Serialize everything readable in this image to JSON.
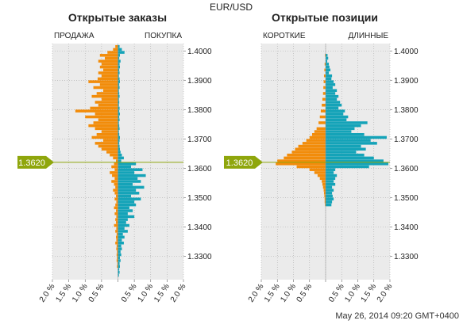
{
  "header": {
    "instrument": "EUR/USD"
  },
  "footer": {
    "timestamp": "May 26, 2014 09:20 GMT+0400"
  },
  "price_marker": {
    "label": "1.3620",
    "value": 1.362,
    "color": "#8fa60c"
  },
  "colors": {
    "sell": "#f28c0a",
    "buy": "#14a3b8",
    "panel": "#ebebeb",
    "grid": "#aaaaaa"
  },
  "chart_data": [
    {
      "type": "bar",
      "orientation": "horizontal",
      "title": "Открытые заказы",
      "left_label": "ПРОДАЖА",
      "right_label": "ПОКУПКА",
      "y_ticks": [
        "1.4000",
        "1.3900",
        "1.3800",
        "1.3700",
        "1.3600",
        "1.3500",
        "1.3400",
        "1.3300"
      ],
      "x_ticks": [
        "2.0 %",
        "1.5 %",
        "1.0 %",
        "0.5 %",
        "",
        "0.5 %",
        "1.0 %",
        "1.5 %",
        "2.0 %"
      ],
      "xlim": [
        -2,
        2
      ],
      "ylim": [
        1.322,
        1.4025
      ],
      "series": [
        {
          "name": "ПРОДАЖА",
          "levels": [
            [
              1.4015,
              0.08
            ],
            [
              1.4005,
              0.15
            ],
            [
              1.3995,
              0.32
            ],
            [
              1.3985,
              0.55
            ],
            [
              1.3975,
              0.4
            ],
            [
              1.3965,
              0.6
            ],
            [
              1.3955,
              0.5
            ],
            [
              1.3945,
              0.55
            ],
            [
              1.3935,
              0.45
            ],
            [
              1.3925,
              0.6
            ],
            [
              1.3915,
              0.5
            ],
            [
              1.3905,
              0.62
            ],
            [
              1.3895,
              0.9
            ],
            [
              1.3885,
              0.55
            ],
            [
              1.3875,
              0.75
            ],
            [
              1.3865,
              0.45
            ],
            [
              1.3855,
              0.65
            ],
            [
              1.3845,
              0.8
            ],
            [
              1.3835,
              0.5
            ],
            [
              1.3825,
              0.7
            ],
            [
              1.3815,
              0.6
            ],
            [
              1.3805,
              0.85
            ],
            [
              1.3795,
              1.3
            ],
            [
              1.3785,
              0.7
            ],
            [
              1.3775,
              1.0
            ],
            [
              1.3765,
              0.6
            ],
            [
              1.3755,
              0.75
            ],
            [
              1.3745,
              0.9
            ],
            [
              1.3735,
              0.7
            ],
            [
              1.3725,
              0.5
            ],
            [
              1.3715,
              0.65
            ],
            [
              1.3705,
              0.8
            ],
            [
              1.3695,
              0.45
            ],
            [
              1.3685,
              0.7
            ],
            [
              1.3675,
              0.6
            ],
            [
              1.3665,
              0.5
            ],
            [
              1.3655,
              0.35
            ],
            [
              1.3645,
              0.25
            ],
            [
              1.3635,
              0.15
            ],
            [
              1.3625,
              0.06
            ],
            [
              1.3615,
              0.12
            ],
            [
              1.3605,
              0.2
            ],
            [
              1.3595,
              0.1
            ],
            [
              1.3585,
              0.25
            ],
            [
              1.3575,
              0.18
            ],
            [
              1.3565,
              0.1
            ],
            [
              1.3555,
              0.2
            ],
            [
              1.3545,
              0.12
            ],
            [
              1.3535,
              0.08
            ],
            [
              1.3525,
              0.15
            ],
            [
              1.3515,
              0.1
            ],
            [
              1.3505,
              0.06
            ],
            [
              1.3495,
              0.1
            ],
            [
              1.3485,
              0.05
            ],
            [
              1.3475,
              0.08
            ],
            [
              1.3465,
              0.12
            ],
            [
              1.3455,
              0.06
            ],
            [
              1.3445,
              0.1
            ],
            [
              1.3435,
              0.05
            ],
            [
              1.3425,
              0.08
            ],
            [
              1.3415,
              0.06
            ],
            [
              1.3405,
              0.12
            ],
            [
              1.3395,
              0.05
            ],
            [
              1.3385,
              0.08
            ],
            [
              1.3375,
              0.04
            ],
            [
              1.3365,
              0.06
            ],
            [
              1.3355,
              0.05
            ],
            [
              1.3345,
              0.08
            ],
            [
              1.3335,
              0.04
            ],
            [
              1.3325,
              0.05
            ],
            [
              1.3315,
              0.03
            ],
            [
              1.3305,
              0.04
            ],
            [
              1.3295,
              0.03
            ],
            [
              1.3285,
              0.04
            ],
            [
              1.3275,
              0.02
            ],
            [
              1.3265,
              0.03
            ]
          ]
        },
        {
          "name": "ПОКУПКА",
          "levels": [
            [
              1.4015,
              0.05
            ],
            [
              1.4005,
              0.12
            ],
            [
              1.3995,
              0.2
            ],
            [
              1.3985,
              0.06
            ],
            [
              1.3975,
              0.04
            ],
            [
              1.3965,
              0.08
            ],
            [
              1.3955,
              0.05
            ],
            [
              1.3945,
              0.06
            ],
            [
              1.3935,
              0.04
            ],
            [
              1.3925,
              0.05
            ],
            [
              1.3915,
              0.03
            ],
            [
              1.3905,
              0.05
            ],
            [
              1.3895,
              0.06
            ],
            [
              1.3885,
              0.04
            ],
            [
              1.3875,
              0.05
            ],
            [
              1.3865,
              0.03
            ],
            [
              1.3855,
              0.04
            ],
            [
              1.3845,
              0.05
            ],
            [
              1.3835,
              0.03
            ],
            [
              1.3825,
              0.04
            ],
            [
              1.3815,
              0.03
            ],
            [
              1.3805,
              0.05
            ],
            [
              1.3795,
              0.04
            ],
            [
              1.3785,
              0.06
            ],
            [
              1.3775,
              0.04
            ],
            [
              1.3765,
              0.05
            ],
            [
              1.3755,
              0.03
            ],
            [
              1.3745,
              0.04
            ],
            [
              1.3735,
              0.05
            ],
            [
              1.3725,
              0.03
            ],
            [
              1.3715,
              0.04
            ],
            [
              1.3705,
              0.06
            ],
            [
              1.3695,
              0.05
            ],
            [
              1.3685,
              0.04
            ],
            [
              1.3675,
              0.05
            ],
            [
              1.3665,
              0.06
            ],
            [
              1.3655,
              0.08
            ],
            [
              1.3645,
              0.12
            ],
            [
              1.3635,
              0.18
            ],
            [
              1.3625,
              0.1
            ],
            [
              1.3615,
              0.55
            ],
            [
              1.3605,
              0.4
            ],
            [
              1.3595,
              0.75
            ],
            [
              1.3585,
              0.5
            ],
            [
              1.3575,
              0.85
            ],
            [
              1.3565,
              0.6
            ],
            [
              1.3555,
              0.7
            ],
            [
              1.3545,
              0.45
            ],
            [
              1.3535,
              0.8
            ],
            [
              1.3525,
              0.55
            ],
            [
              1.3515,
              0.65
            ],
            [
              1.3505,
              0.4
            ],
            [
              1.3495,
              0.7
            ],
            [
              1.3485,
              0.5
            ],
            [
              1.3475,
              0.55
            ],
            [
              1.3465,
              0.35
            ],
            [
              1.3455,
              0.45
            ],
            [
              1.3445,
              0.3
            ],
            [
              1.3435,
              0.5
            ],
            [
              1.3425,
              0.3
            ],
            [
              1.3415,
              0.25
            ],
            [
              1.3405,
              0.35
            ],
            [
              1.3395,
              0.2
            ],
            [
              1.3385,
              0.3
            ],
            [
              1.3375,
              0.15
            ],
            [
              1.3365,
              0.2
            ],
            [
              1.3355,
              0.12
            ],
            [
              1.3345,
              0.18
            ],
            [
              1.3335,
              0.1
            ],
            [
              1.3325,
              0.12
            ],
            [
              1.3315,
              0.08
            ],
            [
              1.3305,
              0.1
            ],
            [
              1.3295,
              0.06
            ],
            [
              1.3285,
              0.08
            ],
            [
              1.3275,
              0.05
            ],
            [
              1.3265,
              0.06
            ],
            [
              1.3255,
              0.04
            ],
            [
              1.3245,
              0.05
            ],
            [
              1.3235,
              0.03
            ]
          ]
        }
      ]
    },
    {
      "type": "bar",
      "orientation": "horizontal",
      "title": "Открытые позиции",
      "left_label": "КОРОТКИЕ",
      "right_label": "ДЛИННЫЕ",
      "y_ticks": [
        "1.4000",
        "1.3900",
        "1.3800",
        "1.3700",
        "1.3600",
        "1.3500",
        "1.3400",
        "1.3300"
      ],
      "x_ticks": [
        "2.0 %",
        "1.5 %",
        "1.0 %",
        "0.5 %",
        "",
        "0.5 %",
        "1.0 %",
        "1.5 %",
        "2.0 %"
      ],
      "xlim": [
        -2,
        2
      ],
      "ylim": [
        1.322,
        1.4025
      ],
      "series": [
        {
          "name": "КОРОТКИЕ",
          "levels": [
            [
              1.3985,
              0.02
            ],
            [
              1.3955,
              0.03
            ],
            [
              1.3935,
              0.04
            ],
            [
              1.3915,
              0.05
            ],
            [
              1.3895,
              0.06
            ],
            [
              1.3875,
              0.07
            ],
            [
              1.3855,
              0.08
            ],
            [
              1.3835,
              0.1
            ],
            [
              1.3815,
              0.12
            ],
            [
              1.3795,
              0.15
            ],
            [
              1.3775,
              0.18
            ],
            [
              1.3755,
              0.22
            ],
            [
              1.3735,
              0.28
            ],
            [
              1.3725,
              0.35
            ],
            [
              1.3715,
              0.42
            ],
            [
              1.3705,
              0.5
            ],
            [
              1.3695,
              0.6
            ],
            [
              1.3685,
              0.72
            ],
            [
              1.3675,
              0.85
            ],
            [
              1.3665,
              0.95
            ],
            [
              1.3655,
              1.05
            ],
            [
              1.3645,
              1.2
            ],
            [
              1.3635,
              1.3
            ],
            [
              1.3625,
              1.5
            ],
            [
              1.3615,
              1.55
            ],
            [
              1.3605,
              0.9
            ],
            [
              1.3595,
              0.5
            ],
            [
              1.3585,
              0.35
            ],
            [
              1.3575,
              0.25
            ],
            [
              1.3565,
              0.18
            ],
            [
              1.3555,
              0.12
            ],
            [
              1.3545,
              0.1
            ],
            [
              1.3535,
              0.08
            ],
            [
              1.3525,
              0.06
            ],
            [
              1.3515,
              0.05
            ],
            [
              1.3505,
              0.04
            ],
            [
              1.3495,
              0.03
            ],
            [
              1.3485,
              0.03
            ],
            [
              1.3475,
              0.02
            ]
          ]
        },
        {
          "name": "ДЛИННЫЕ",
          "levels": [
            [
              1.3985,
              0.06
            ],
            [
              1.3975,
              0.08
            ],
            [
              1.3965,
              0.05
            ],
            [
              1.3955,
              0.1
            ],
            [
              1.3945,
              0.12
            ],
            [
              1.3935,
              0.15
            ],
            [
              1.3925,
              0.1
            ],
            [
              1.3915,
              0.2
            ],
            [
              1.3905,
              0.18
            ],
            [
              1.3895,
              0.25
            ],
            [
              1.3885,
              0.3
            ],
            [
              1.3875,
              0.22
            ],
            [
              1.3865,
              0.35
            ],
            [
              1.3855,
              0.3
            ],
            [
              1.3845,
              0.4
            ],
            [
              1.3835,
              0.35
            ],
            [
              1.3825,
              0.45
            ],
            [
              1.3815,
              0.5
            ],
            [
              1.3805,
              0.4
            ],
            [
              1.3795,
              0.6
            ],
            [
              1.3785,
              0.55
            ],
            [
              1.3775,
              0.7
            ],
            [
              1.3765,
              0.65
            ],
            [
              1.3755,
              1.3
            ],
            [
              1.3745,
              1.1
            ],
            [
              1.3735,
              0.9
            ],
            [
              1.3725,
              0.8
            ],
            [
              1.3715,
              1.2
            ],
            [
              1.3705,
              1.9
            ],
            [
              1.3695,
              1.4
            ],
            [
              1.3685,
              1.6
            ],
            [
              1.3675,
              1.1
            ],
            [
              1.3665,
              1.25
            ],
            [
              1.3655,
              0.95
            ],
            [
              1.3645,
              1.2
            ],
            [
              1.3635,
              1.5
            ],
            [
              1.3625,
              1.8
            ],
            [
              1.3615,
              1.95
            ],
            [
              1.3605,
              1.35
            ],
            [
              1.3595,
              0.3
            ],
            [
              1.3585,
              0.25
            ],
            [
              1.3575,
              0.35
            ],
            [
              1.3565,
              0.3
            ],
            [
              1.3555,
              0.25
            ],
            [
              1.3545,
              0.3
            ],
            [
              1.3535,
              0.2
            ],
            [
              1.3525,
              0.25
            ],
            [
              1.3515,
              0.2
            ],
            [
              1.3505,
              0.22
            ],
            [
              1.3495,
              0.25
            ],
            [
              1.3485,
              0.2
            ],
            [
              1.3475,
              0.18
            ]
          ]
        }
      ]
    }
  ]
}
